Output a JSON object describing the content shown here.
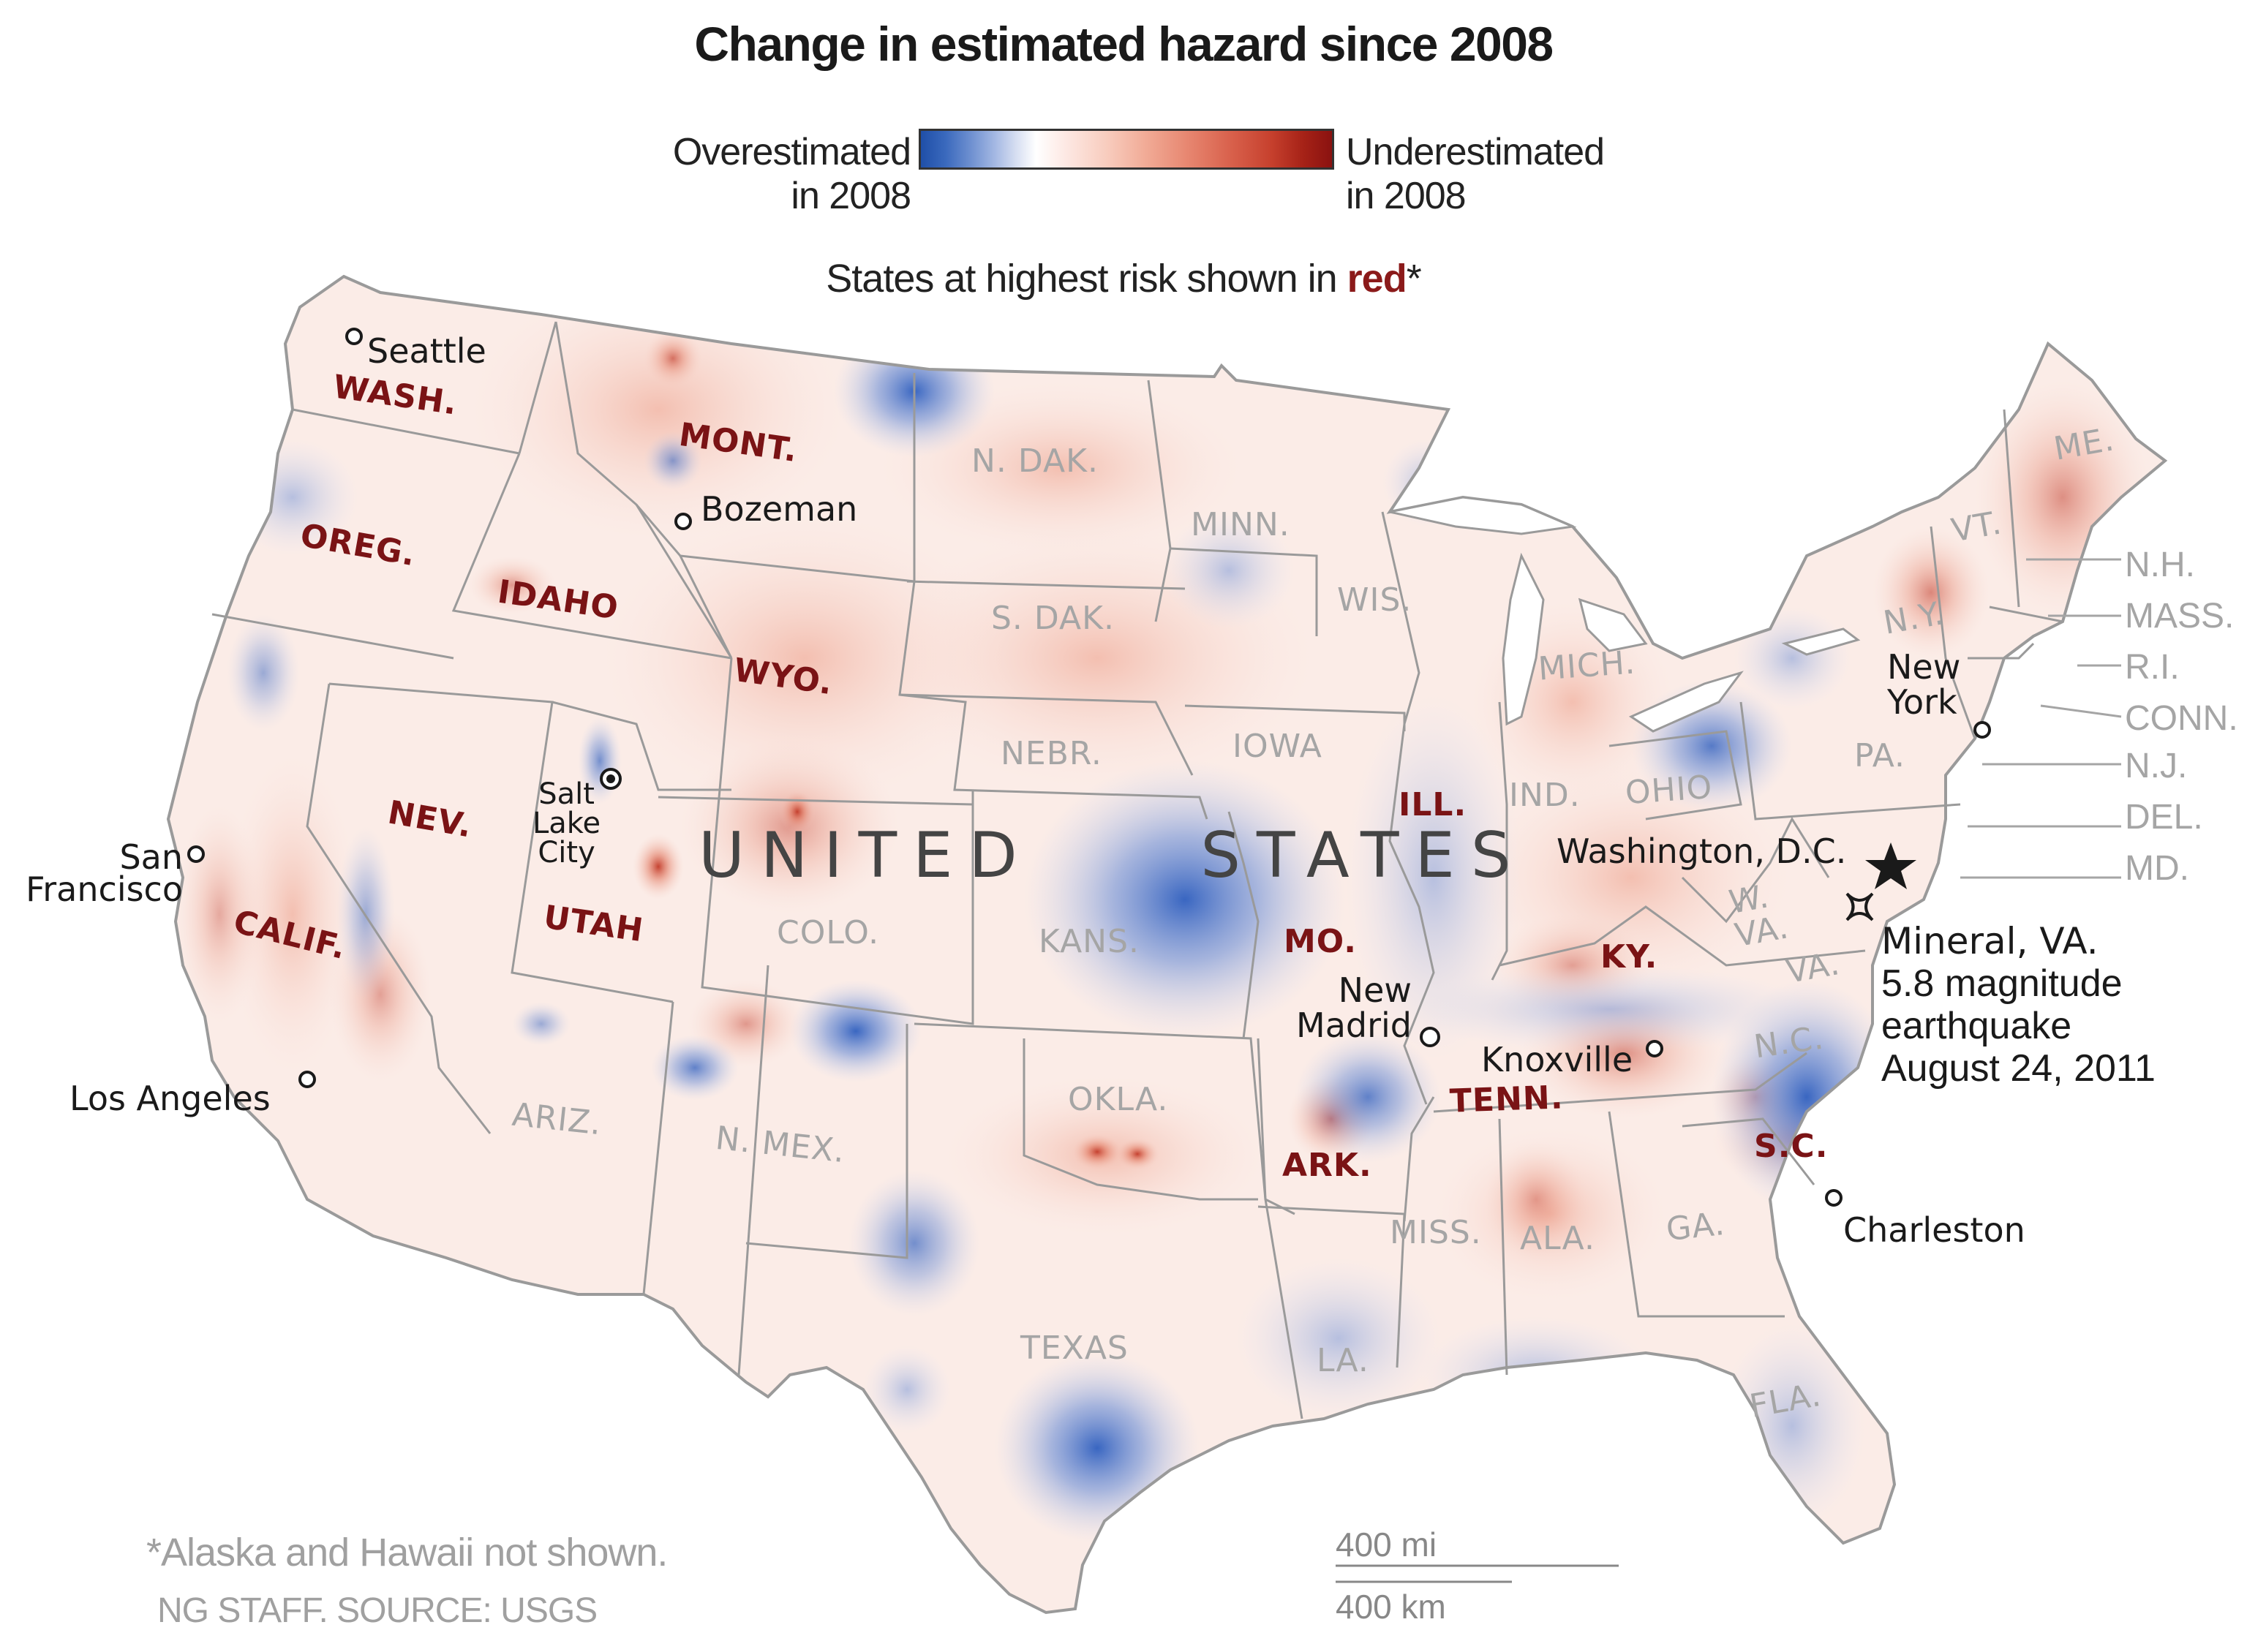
{
  "title": "Change in estimated hazard since 2008",
  "legend": {
    "left_line1": "Overestimated",
    "left_line2": "in 2008",
    "right_line1": "Underestimated",
    "right_line2": "in 2008"
  },
  "subtitle": {
    "before": "States at highest risk shown in ",
    "highlight": "red",
    "after": "*"
  },
  "country": "UNITED STATES",
  "country_words": [
    "UNITED",
    "STATES"
  ],
  "high_risk_states": [
    "WASH.",
    "OREG.",
    "CALIF.",
    "NEV.",
    "IDAHO",
    "MONT.",
    "WYO.",
    "UTAH",
    "ILL.",
    "MO.",
    "ARK.",
    "KY.",
    "TENN.",
    "S.C."
  ],
  "other_states": [
    "N. DAK.",
    "MINN.",
    "S. DAK.",
    "WIS.",
    "MICH.",
    "IOWA",
    "NEBR.",
    "IND.",
    "OHIO",
    "PA.",
    "N.Y.",
    "VT.",
    "ME.",
    "COLO.",
    "KANS.",
    "W. VA.",
    "VA.",
    "N.C.",
    "ARIZ.",
    "N. MEX.",
    "OKLA.",
    "TEXAS",
    "LA.",
    "MISS.",
    "ALA.",
    "GA.",
    "FLA."
  ],
  "northeast_labels": [
    "N.H.",
    "MASS.",
    "R.I.",
    "CONN.",
    "N.J.",
    "DEL.",
    "MD."
  ],
  "cities": {
    "seattle": "Seattle",
    "bozeman": "Bozeman",
    "salt_lake_city": [
      "Salt",
      "Lake",
      "City"
    ],
    "san_francisco": [
      "San",
      "Francisco"
    ],
    "los_angeles": "Los Angeles",
    "new_madrid": [
      "New",
      "Madrid"
    ],
    "knoxville": "Knoxville",
    "charleston": "Charleston",
    "new_york": [
      "New",
      "York"
    ],
    "washington_dc": "Washington, D.C."
  },
  "earthquake": {
    "line1": "Mineral, VA.",
    "line2": "5.8 magnitude",
    "line3": "earthquake",
    "line4": "August 24, 2011"
  },
  "scale": {
    "miles": "400 mi",
    "km": "400 km"
  },
  "footnote": "*Alaska and Hawaii not shown.",
  "credit": "NG STAFF. SOURCE: USGS",
  "colors": {
    "overestimated": "#1f4fa8",
    "underestimated": "#8a1210",
    "high_risk_label": "#7a1315",
    "other_label": "#a5a5a5",
    "borders": "#999999"
  }
}
